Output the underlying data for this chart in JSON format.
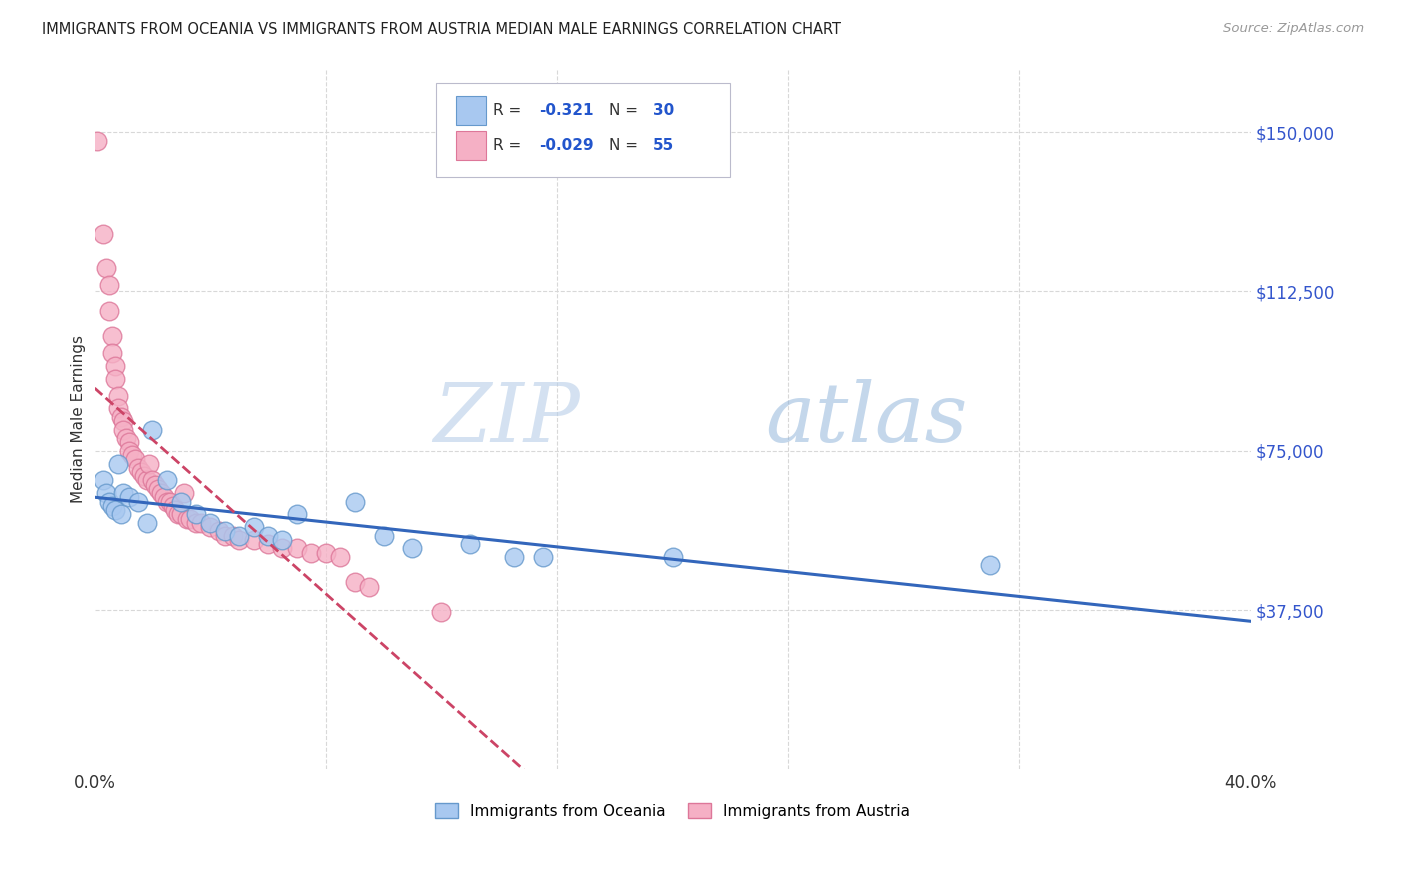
{
  "title": "IMMIGRANTS FROM OCEANIA VS IMMIGRANTS FROM AUSTRIA MEDIAN MALE EARNINGS CORRELATION CHART",
  "source": "Source: ZipAtlas.com",
  "ylabel": "Median Male Earnings",
  "xlim": [
    0.0,
    0.4
  ],
  "ylim": [
    0,
    165000
  ],
  "yticks": [
    0,
    37500,
    75000,
    112500,
    150000
  ],
  "ytick_labels": [
    "",
    "$37,500",
    "$75,000",
    "$112,500",
    "$150,000"
  ],
  "xticks": [
    0.0,
    0.08,
    0.16,
    0.24,
    0.32,
    0.4
  ],
  "xtick_labels": [
    "0.0%",
    "",
    "",
    "",
    "",
    "40.0%"
  ],
  "background_color": "#ffffff",
  "grid_color": "#d8d8d8",
  "oceania_color": "#a8c8f0",
  "oceania_edge": "#6699cc",
  "austria_color": "#f5b0c5",
  "austria_edge": "#dd7799",
  "trend_oceania_color": "#3366bb",
  "trend_austria_color": "#cc4466",
  "watermark_zip": "ZIP",
  "watermark_atlas": "atlas",
  "oceania_points": [
    [
      0.003,
      68000
    ],
    [
      0.004,
      65000
    ],
    [
      0.005,
      63000
    ],
    [
      0.006,
      62000
    ],
    [
      0.007,
      61000
    ],
    [
      0.008,
      72000
    ],
    [
      0.009,
      60000
    ],
    [
      0.01,
      65000
    ],
    [
      0.012,
      64000
    ],
    [
      0.015,
      63000
    ],
    [
      0.018,
      58000
    ],
    [
      0.02,
      80000
    ],
    [
      0.025,
      68000
    ],
    [
      0.03,
      63000
    ],
    [
      0.035,
      60000
    ],
    [
      0.04,
      58000
    ],
    [
      0.045,
      56000
    ],
    [
      0.05,
      55000
    ],
    [
      0.055,
      57000
    ],
    [
      0.06,
      55000
    ],
    [
      0.065,
      54000
    ],
    [
      0.07,
      60000
    ],
    [
      0.09,
      63000
    ],
    [
      0.1,
      55000
    ],
    [
      0.11,
      52000
    ],
    [
      0.13,
      53000
    ],
    [
      0.145,
      50000
    ],
    [
      0.155,
      50000
    ],
    [
      0.2,
      50000
    ],
    [
      0.31,
      48000
    ]
  ],
  "austria_points": [
    [
      0.001,
      148000
    ],
    [
      0.003,
      126000
    ],
    [
      0.004,
      118000
    ],
    [
      0.005,
      114000
    ],
    [
      0.005,
      108000
    ],
    [
      0.006,
      102000
    ],
    [
      0.006,
      98000
    ],
    [
      0.007,
      95000
    ],
    [
      0.007,
      92000
    ],
    [
      0.008,
      88000
    ],
    [
      0.008,
      85000
    ],
    [
      0.009,
      83000
    ],
    [
      0.01,
      82000
    ],
    [
      0.01,
      80000
    ],
    [
      0.011,
      78000
    ],
    [
      0.012,
      77000
    ],
    [
      0.012,
      75000
    ],
    [
      0.013,
      74000
    ],
    [
      0.014,
      73000
    ],
    [
      0.015,
      71000
    ],
    [
      0.016,
      70000
    ],
    [
      0.017,
      69000
    ],
    [
      0.018,
      68000
    ],
    [
      0.019,
      72000
    ],
    [
      0.02,
      68000
    ],
    [
      0.021,
      67000
    ],
    [
      0.022,
      66000
    ],
    [
      0.023,
      65000
    ],
    [
      0.024,
      64000
    ],
    [
      0.025,
      63000
    ],
    [
      0.026,
      63000
    ],
    [
      0.027,
      62000
    ],
    [
      0.028,
      61000
    ],
    [
      0.029,
      60000
    ],
    [
      0.03,
      60000
    ],
    [
      0.031,
      65000
    ],
    [
      0.032,
      59000
    ],
    [
      0.033,
      59000
    ],
    [
      0.035,
      58000
    ],
    [
      0.037,
      58000
    ],
    [
      0.04,
      57000
    ],
    [
      0.043,
      56000
    ],
    [
      0.045,
      55000
    ],
    [
      0.048,
      55000
    ],
    [
      0.05,
      54000
    ],
    [
      0.055,
      54000
    ],
    [
      0.06,
      53000
    ],
    [
      0.065,
      52000
    ],
    [
      0.07,
      52000
    ],
    [
      0.075,
      51000
    ],
    [
      0.08,
      51000
    ],
    [
      0.085,
      50000
    ],
    [
      0.09,
      44000
    ],
    [
      0.095,
      43000
    ],
    [
      0.12,
      37000
    ]
  ]
}
